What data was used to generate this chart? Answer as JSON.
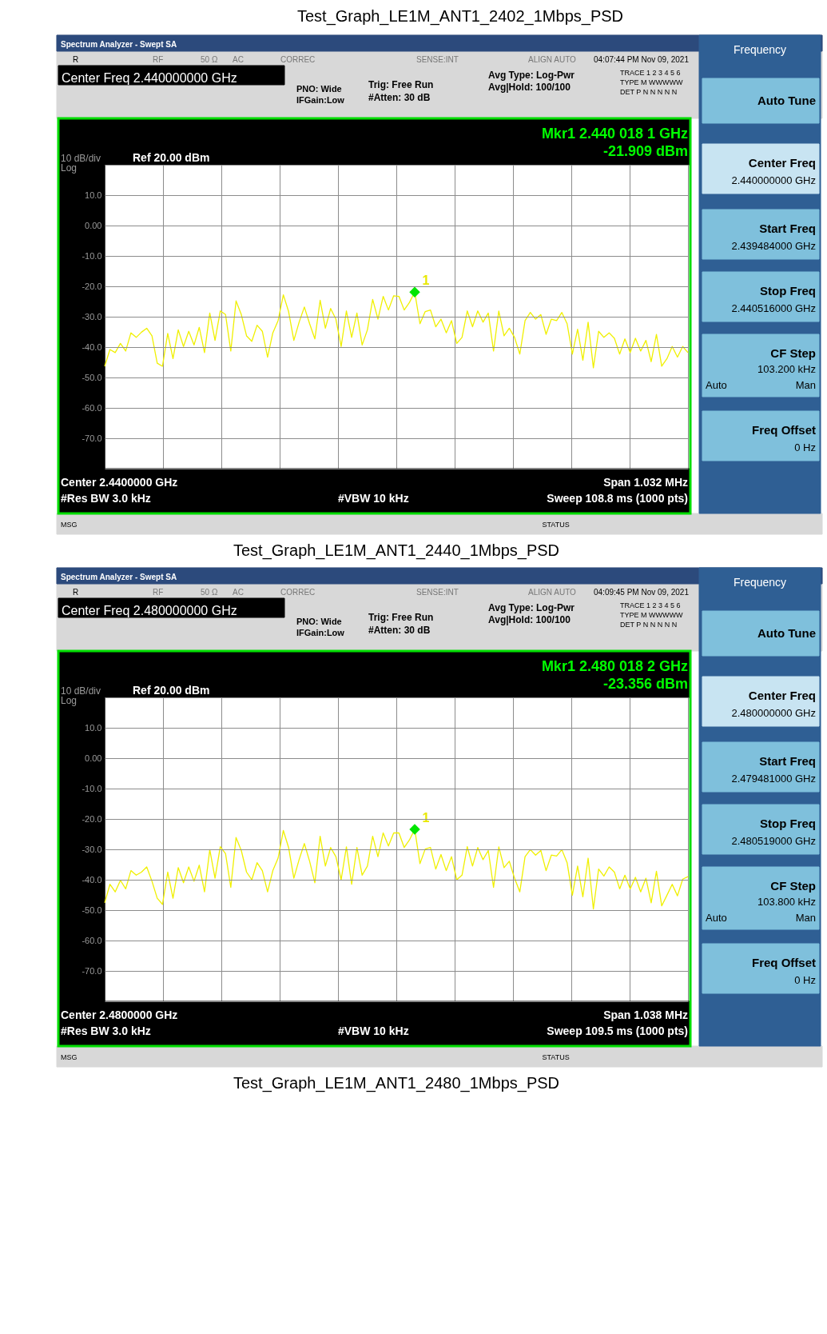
{
  "chart_data": [
    {
      "type": "line",
      "title": "Test_Graph_LE1M_ANT1_2440_1Mbps_PSD",
      "categories": [
        null,
        null,
        null,
        null,
        null,
        null,
        null,
        null,
        null,
        null,
        null,
        null,
        null,
        null,
        null,
        null,
        null,
        null,
        null,
        null,
        null,
        null,
        null,
        null,
        null,
        null,
        null,
        null,
        null,
        null,
        null,
        null,
        null,
        null,
        null,
        null,
        null,
        null,
        null,
        null,
        null,
        null,
        null,
        null,
        null,
        null,
        null,
        null,
        null,
        null,
        null,
        null,
        null,
        null,
        null,
        null,
        null,
        null,
        null,
        null,
        null,
        null,
        null,
        null,
        null,
        null,
        null,
        null,
        null,
        null,
        null,
        null,
        null,
        null,
        null,
        null,
        null,
        null,
        null,
        null,
        null,
        null,
        null,
        null,
        null,
        null,
        null,
        null,
        null,
        null,
        null,
        null,
        null,
        null,
        null,
        null,
        null,
        null,
        null,
        null,
        null,
        null,
        null,
        null,
        null,
        null,
        null,
        null,
        null,
        null,
        null,
        null
      ],
      "series": [
        {
          "color": "#f0f000",
          "marker": "none",
          "line_style": "solid",
          "values": [
            -46.3,
            -40.8,
            -41.8,
            -38.8,
            -41.3,
            -35.3,
            -36.8,
            -35.1,
            -33.8,
            -36.3,
            -45.3,
            -46.3,
            -35.5,
            -43.8,
            -34.3,
            -39.8,
            -34.8,
            -39.3,
            -33.5,
            -41.8,
            -28.8,
            -37.8,
            -28.1,
            -29.3,
            -41.3,
            -24.8,
            -29.3,
            -36.3,
            -38.1,
            -32.8,
            -34.8,
            -43.3,
            -35.3,
            -31.3,
            -22.8,
            -28.3,
            -37.8,
            -31.8,
            -26.8,
            -32.3,
            -37.3,
            -24.6,
            -33.8,
            -27.3,
            -30.8,
            -39.8,
            -28.1,
            -36.8,
            -28.8,
            -39.3,
            -34.3,
            -24.3,
            -30.8,
            -23.3,
            -27.8,
            -23.1,
            -23.3,
            -27.8,
            -25.3,
            -21.9,
            -32.3,
            -28.3,
            -27.8,
            -33.3,
            -30.8,
            -35.3,
            -31.3,
            -38.8,
            -36.8,
            -28.1,
            -33.3,
            -28.1,
            -31.8,
            -28.8,
            -41.3,
            -28.1,
            -36.3,
            -33.8,
            -36.8,
            -42.3,
            -31.3,
            -28.6,
            -30.8,
            -29.3,
            -35.8,
            -30.8,
            -31.3,
            -28.6,
            -32.3,
            -42.3,
            -34.1,
            -44.3,
            -31.8,
            -46.8,
            -34.8,
            -36.8,
            -35.3,
            -37.1,
            -42.3,
            -37.3,
            -41.8,
            -37.1,
            -41.3,
            -37.8,
            -44.8,
            -35.8,
            -46.3,
            -43.8,
            -39.8,
            -43.3,
            -39.8,
            -41.8
          ]
        },
        {
          "type": "scatter",
          "name": "1",
          "color": "#00e600",
          "marker": "diamond",
          "values": [
            null,
            null,
            null,
            null,
            null,
            null,
            null,
            null,
            null,
            null,
            null,
            null,
            null,
            null,
            null,
            null,
            null,
            null,
            null,
            null,
            null,
            null,
            null,
            null,
            null,
            null,
            null,
            null,
            null,
            null,
            null,
            null,
            null,
            null,
            null,
            null,
            null,
            null,
            null,
            null,
            null,
            null,
            null,
            null,
            null,
            null,
            null,
            null,
            null,
            null,
            null,
            null,
            null,
            null,
            null,
            null,
            null,
            null,
            null,
            -21.9,
            null,
            null,
            null,
            null,
            null,
            null,
            null,
            null,
            null,
            null,
            null,
            null,
            null,
            null,
            null,
            null,
            null,
            null,
            null,
            null,
            null,
            null,
            null,
            null,
            null,
            null,
            null,
            null,
            null,
            null,
            null,
            null,
            null,
            null,
            null,
            null,
            null,
            null,
            null,
            null,
            null,
            null,
            null,
            null,
            null,
            null,
            null,
            null,
            null,
            null,
            null,
            null
          ]
        }
      ],
      "ylim": [
        -80,
        20
      ],
      "yticks": [
        {
          "value": 20,
          "label": null
        },
        {
          "value": 10,
          "label": "10.0"
        },
        {
          "value": 0,
          "label": "0.00"
        },
        {
          "value": -10,
          "label": "-10.0"
        },
        {
          "value": -20,
          "label": "-20.0"
        },
        {
          "value": -30,
          "label": "-30.0"
        },
        {
          "value": -40,
          "label": "-40.0"
        },
        {
          "value": -50,
          "label": "-50.0"
        },
        {
          "value": -60,
          "label": "-60.0"
        },
        {
          "value": -70,
          "label": "-70.0"
        },
        {
          "value": -80,
          "label": null
        }
      ],
      "grid": true,
      "tick_labels": "y",
      "annotations": [
        "Test_Graph_LE1M_ANT1_2402_1Mbps_PSD",
        "Spectrum Analyzer - Swept SA",
        "R",
        "RF",
        "50 Ω",
        "AC",
        "CORREC",
        "SENSE:INT",
        "ALIGN AUTO",
        "04:07:44 PM Nov 09, 2021",
        "Center Freq 2.440000000 GHz",
        "PNO: Wide",
        "IFGain:Low",
        "Trig: Free Run",
        "#Atten: 30 dB",
        "Avg Type: Log-Pwr",
        "Avg|Hold: 100/100",
        "TRACE 1 2 3 4 5 6",
        "TYPE M WWWWW",
        "DET P N N N N N",
        "Mkr1 2.440 018 1 GHz",
        "-21.909 dBm",
        "10 dB/div",
        "Log",
        "Ref 20.00 dBm",
        "Center 2.4400000 GHz",
        "Span 1.032 MHz",
        "#Res BW 3.0 kHz",
        "#VBW 10 kHz",
        "Sweep  108.8 ms (1000 pts)",
        "MSG",
        "STATUS",
        "Frequency",
        "Auto Tune",
        "Center Freq",
        "2.440000000 GHz",
        "Start Freq",
        "2.439484000 GHz",
        "Stop Freq",
        "2.440516000 GHz",
        "CF Step",
        "103.200 kHz",
        "Auto",
        "Man",
        "Freq Offset",
        "0 Hz"
      ]
    },
    {
      "type": "line",
      "title": "Test_Graph_LE1M_ANT1_2480_1Mbps_PSD",
      "categories": [
        null,
        null,
        null,
        null,
        null,
        null,
        null,
        null,
        null,
        null,
        null,
        null,
        null,
        null,
        null,
        null,
        null,
        null,
        null,
        null,
        null,
        null,
        null,
        null,
        null,
        null,
        null,
        null,
        null,
        null,
        null,
        null,
        null,
        null,
        null,
        null,
        null,
        null,
        null,
        null,
        null,
        null,
        null,
        null,
        null,
        null,
        null,
        null,
        null,
        null,
        null,
        null,
        null,
        null,
        null,
        null,
        null,
        null,
        null,
        null,
        null,
        null,
        null,
        null,
        null,
        null,
        null,
        null,
        null,
        null,
        null,
        null,
        null,
        null,
        null,
        null,
        null,
        null,
        null,
        null,
        null,
        null,
        null,
        null,
        null,
        null,
        null,
        null,
        null,
        null,
        null,
        null,
        null,
        null,
        null,
        null,
        null,
        null,
        null,
        null,
        null,
        null,
        null,
        null,
        null,
        null,
        null,
        null,
        null,
        null,
        null,
        null
      ],
      "series": [
        {
          "color": "#f0f000",
          "marker": "none",
          "line_style": "solid",
          "values": [
            -47.6,
            -41.5,
            -44.0,
            -40.2,
            -43.0,
            -37.0,
            -38.5,
            -37.5,
            -35.8,
            -40.5,
            -46.1,
            -48.1,
            -37.5,
            -46.1,
            -36.0,
            -41.0,
            -35.8,
            -40.5,
            -35.2,
            -44.0,
            -30.1,
            -39.5,
            -29.1,
            -31.4,
            -42.5,
            -26.1,
            -30.4,
            -37.5,
            -40.0,
            -34.4,
            -37.0,
            -44.0,
            -37.0,
            -32.9,
            -23.8,
            -29.4,
            -39.5,
            -33.4,
            -28.1,
            -33.9,
            -41.0,
            -25.7,
            -35.5,
            -29.4,
            -32.4,
            -40.0,
            -29.2,
            -41.5,
            -29.4,
            -38.5,
            -35.5,
            -25.7,
            -32.4,
            -24.6,
            -28.9,
            -24.6,
            -24.6,
            -29.4,
            -26.9,
            -23.4,
            -34.7,
            -29.9,
            -29.4,
            -36.5,
            -31.7,
            -37.0,
            -32.4,
            -40.0,
            -38.5,
            -29.1,
            -35.5,
            -29.4,
            -33.4,
            -30.4,
            -42.5,
            -29.2,
            -36.0,
            -33.9,
            -39.5,
            -44.0,
            -32.4,
            -30.1,
            -31.9,
            -30.4,
            -37.0,
            -31.9,
            -32.2,
            -30.1,
            -34.4,
            -45.1,
            -35.5,
            -45.6,
            -32.9,
            -49.6,
            -36.5,
            -38.8,
            -35.8,
            -37.5,
            -43.0,
            -38.5,
            -43.0,
            -39.2,
            -44.0,
            -39.5,
            -47.6,
            -37.2,
            -48.6,
            -45.1,
            -41.5,
            -45.3,
            -39.8,
            -39.0
          ]
        },
        {
          "type": "scatter",
          "name": "1",
          "color": "#00e600",
          "marker": "diamond",
          "values": [
            null,
            null,
            null,
            null,
            null,
            null,
            null,
            null,
            null,
            null,
            null,
            null,
            null,
            null,
            null,
            null,
            null,
            null,
            null,
            null,
            null,
            null,
            null,
            null,
            null,
            null,
            null,
            null,
            null,
            null,
            null,
            null,
            null,
            null,
            null,
            null,
            null,
            null,
            null,
            null,
            null,
            null,
            null,
            null,
            null,
            null,
            null,
            null,
            null,
            null,
            null,
            null,
            null,
            null,
            null,
            null,
            null,
            null,
            null,
            -23.4,
            null,
            null,
            null,
            null,
            null,
            null,
            null,
            null,
            null,
            null,
            null,
            null,
            null,
            null,
            null,
            null,
            null,
            null,
            null,
            null,
            null,
            null,
            null,
            null,
            null,
            null,
            null,
            null,
            null,
            null,
            null,
            null,
            null,
            null,
            null,
            null,
            null,
            null,
            null,
            null,
            null,
            null,
            null,
            null,
            null,
            null,
            null,
            null,
            null,
            null,
            null,
            null
          ]
        }
      ],
      "ylim": [
        -80,
        20
      ],
      "yticks": [
        {
          "value": 20,
          "label": null
        },
        {
          "value": 10,
          "label": "10.0"
        },
        {
          "value": 0,
          "label": "0.00"
        },
        {
          "value": -10,
          "label": "-10.0"
        },
        {
          "value": -20,
          "label": "-20.0"
        },
        {
          "value": -30,
          "label": "-30.0"
        },
        {
          "value": -40,
          "label": "-40.0"
        },
        {
          "value": -50,
          "label": "-50.0"
        },
        {
          "value": -60,
          "label": "-60.0"
        },
        {
          "value": -70,
          "label": "-70.0"
        },
        {
          "value": -80,
          "label": null
        }
      ],
      "grid": true,
      "tick_labels": "y",
      "annotations": [
        "Spectrum Analyzer - Swept SA",
        "R",
        "RF",
        "50 Ω",
        "AC",
        "CORREC",
        "SENSE:INT",
        "ALIGN AUTO",
        "04:09:45 PM Nov 09, 2021",
        "Center Freq 2.480000000 GHz",
        "PNO: Wide",
        "IFGain:Low",
        "Trig: Free Run",
        "#Atten: 30 dB",
        "Avg Type: Log-Pwr",
        "Avg|Hold: 100/100",
        "TRACE 1 2 3 4 5 6",
        "TYPE M WWWWW",
        "DET P N N N N N",
        "Mkr1 2.480 018 2 GHz",
        "-23.356 dBm",
        "10 dB/div",
        "Log",
        "Ref 20.00 dBm",
        "Center 2.4800000 GHz",
        "Span 1.038 MHz",
        "#Res BW 3.0 kHz",
        "#VBW 10 kHz",
        "Sweep  109.5 ms (1000 pts)",
        "MSG",
        "STATUS",
        "Frequency",
        "Auto Tune",
        "Center Freq",
        "2.480000000 GHz",
        "Start Freq",
        "2.479481000 GHz",
        "Stop Freq",
        "2.480519000 GHz",
        "CF Step",
        "103.800 kHz",
        "Auto",
        "Man",
        "Freq Offset",
        "0 Hz"
      ]
    }
  ]
}
